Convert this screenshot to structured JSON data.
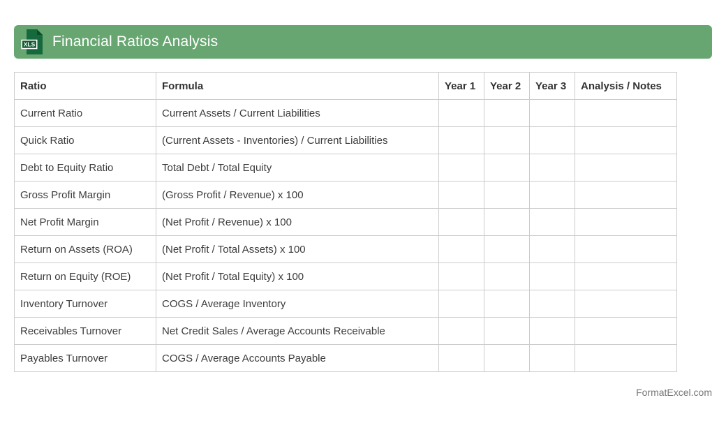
{
  "header": {
    "title": "Financial Ratios Analysis",
    "icon_label": "XLS",
    "bar_color": "#67a671",
    "icon_body_color": "#15693c",
    "icon_fold_color": "#0b4d29",
    "icon_badge_color": "#0e5a31",
    "title_color": "#ffffff"
  },
  "table": {
    "border_color": "#cccccc",
    "text_color": "#3c3c3c",
    "columns": [
      "Ratio",
      "Formula",
      "Year 1",
      "Year 2",
      "Year 3",
      "Analysis / Notes"
    ],
    "rows": [
      {
        "ratio": "Current Ratio",
        "formula": "Current Assets / Current Liabilities",
        "year1": "",
        "year2": "",
        "year3": "",
        "notes": ""
      },
      {
        "ratio": "Quick Ratio",
        "formula": "(Current Assets - Inventories) / Current Liabilities",
        "year1": "",
        "year2": "",
        "year3": "",
        "notes": ""
      },
      {
        "ratio": "Debt to Equity Ratio",
        "formula": "Total Debt / Total Equity",
        "year1": "",
        "year2": "",
        "year3": "",
        "notes": ""
      },
      {
        "ratio": "Gross Profit Margin",
        "formula": "(Gross Profit / Revenue) x 100",
        "year1": "",
        "year2": "",
        "year3": "",
        "notes": ""
      },
      {
        "ratio": "Net Profit Margin",
        "formula": "(Net Profit / Revenue) x 100",
        "year1": "",
        "year2": "",
        "year3": "",
        "notes": ""
      },
      {
        "ratio": "Return on Assets (ROA)",
        "formula": "(Net Profit / Total Assets) x 100",
        "year1": "",
        "year2": "",
        "year3": "",
        "notes": ""
      },
      {
        "ratio": "Return on Equity (ROE)",
        "formula": "(Net Profit / Total Equity) x 100",
        "year1": "",
        "year2": "",
        "year3": "",
        "notes": ""
      },
      {
        "ratio": "Inventory Turnover",
        "formula": "COGS / Average Inventory",
        "year1": "",
        "year2": "",
        "year3": "",
        "notes": ""
      },
      {
        "ratio": "Receivables Turnover",
        "formula": "Net Credit Sales / Average Accounts Receivable",
        "year1": "",
        "year2": "",
        "year3": "",
        "notes": ""
      },
      {
        "ratio": "Payables Turnover",
        "formula": "COGS / Average Accounts Payable",
        "year1": "",
        "year2": "",
        "year3": "",
        "notes": ""
      }
    ]
  },
  "footer": {
    "text": "FormatExcel.com",
    "text_color": "#767676"
  }
}
